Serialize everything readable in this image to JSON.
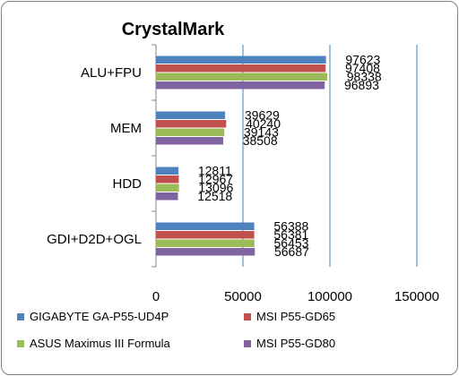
{
  "chart_data": {
    "type": "bar",
    "orientation": "horizontal",
    "title": "CrystalMark",
    "categories": [
      "ALU+FPU",
      "MEM",
      "HDD",
      "GDI+D2D+OGL"
    ],
    "xlim": [
      0,
      150000
    ],
    "xticks": [
      "0",
      "50000",
      "100000",
      "150000"
    ],
    "grid": true,
    "legend_position": "bottom",
    "series": [
      {
        "name": "GIGABYTE GA-P55-UD4P",
        "color": "#4f81bd",
        "values": [
          97623,
          39629,
          12811,
          56388
        ],
        "labels": [
          "97623",
          "39629",
          "12811",
          "56388"
        ]
      },
      {
        "name": "MSI P55-GD65",
        "color": "#c0504d",
        "values": [
          97408,
          40240,
          12967,
          56381
        ],
        "labels": [
          "97408",
          "40240",
          "12967",
          "56381"
        ]
      },
      {
        "name": "ASUS Maximus III Formula",
        "color": "#9bbb59",
        "values": [
          98338,
          39143,
          13096,
          56453
        ],
        "labels": [
          "98338",
          "39143",
          "13096",
          "56453"
        ]
      },
      {
        "name": "MSI P55-GD80",
        "color": "#8064a2",
        "values": [
          96893,
          38508,
          12518,
          56687
        ],
        "labels": [
          "96893",
          "38508",
          "12518",
          "56687"
        ]
      }
    ]
  }
}
